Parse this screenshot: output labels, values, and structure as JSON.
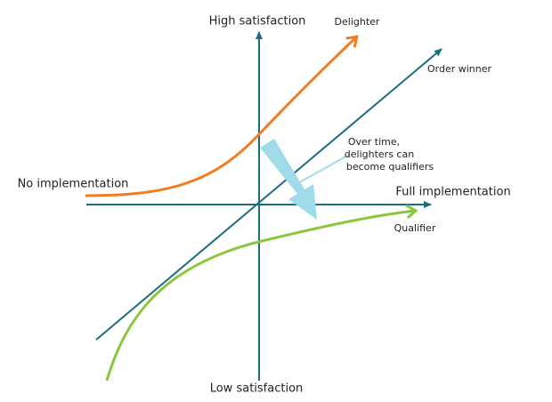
{
  "axes": {
    "top": "High satisfaction",
    "bottom": "Low satisfaction",
    "left": "No implementation",
    "right": "Full implementation"
  },
  "curves": {
    "delighter": "Delighter",
    "order_winner": "Order winner",
    "qualifier": "Qualifier"
  },
  "annotation": {
    "lines": [
      "Over time,",
      "delighters can",
      "become qualifiers"
    ]
  }
}
